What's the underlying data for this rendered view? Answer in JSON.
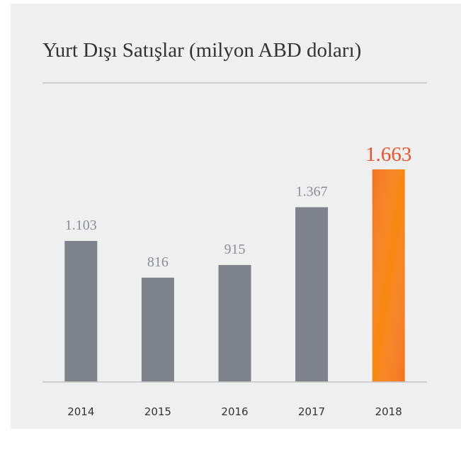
{
  "chart_data": {
    "type": "bar",
    "title": "Yurt Dışı Satışlar (milyon ABD doları)",
    "categories": [
      "2014",
      "2015",
      "2016",
      "2017",
      "2018"
    ],
    "values": [
      1103,
      816,
      915,
      1367,
      1663
    ],
    "value_labels": [
      "1.103",
      "816",
      "915",
      "1.367",
      "1.663"
    ],
    "colors": [
      "#7e828b",
      "#7e828b",
      "#7e828b",
      "#7e828b",
      "#f47216"
    ],
    "label_colors": [
      "#8a8d94",
      "#8a8d94",
      "#8a8d94",
      "#8a8d94",
      "#e8532a"
    ]
  }
}
